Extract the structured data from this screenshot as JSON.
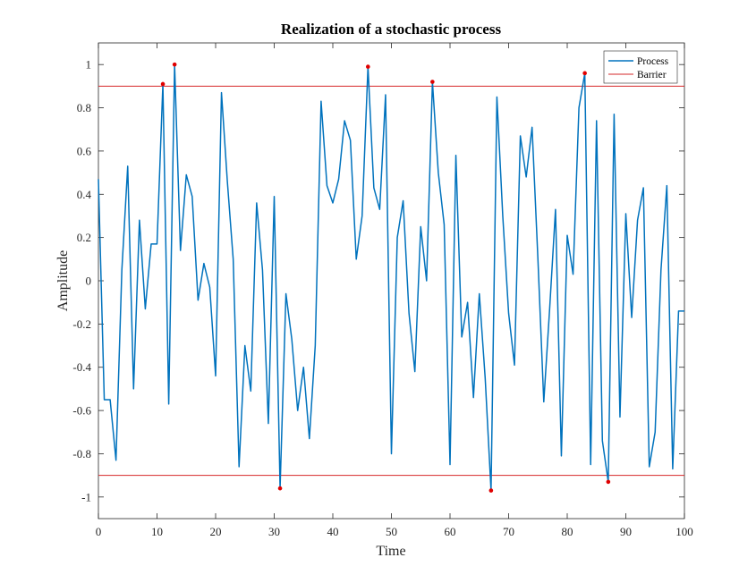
{
  "chart_data": {
    "type": "line",
    "title": "Realization of a stochastic process",
    "xlabel": "Time",
    "ylabel": "Amplitude",
    "xlim": [
      0,
      100
    ],
    "ylim": [
      -1.1,
      1.1
    ],
    "xticks": [
      "0",
      "10",
      "20",
      "30",
      "40",
      "50",
      "60",
      "70",
      "80",
      "90",
      "100"
    ],
    "yticks": [
      "-1",
      "-0.8",
      "-0.6",
      "-0.4",
      "-0.2",
      "0",
      "0.2",
      "0.4",
      "0.6",
      "0.8",
      "1"
    ],
    "grid": false,
    "legend": {
      "placement": "top-right",
      "entries": [
        "Process",
        "Barrier"
      ]
    },
    "colors": {
      "process": "#0072bd",
      "barrier": "#d62728",
      "markers": "#e00000",
      "axes": "#262626"
    },
    "series": [
      {
        "name": "Process",
        "x": [
          0,
          1,
          2,
          3,
          4,
          5,
          6,
          7,
          8,
          9,
          10,
          11,
          12,
          13,
          14,
          15,
          16,
          17,
          18,
          19,
          20,
          21,
          22,
          23,
          24,
          25,
          26,
          27,
          28,
          29,
          30,
          31,
          32,
          33,
          34,
          35,
          36,
          37,
          38,
          39,
          40,
          41,
          42,
          43,
          44,
          45,
          46,
          47,
          48,
          49,
          50,
          51,
          52,
          53,
          54,
          55,
          56,
          57,
          58,
          59,
          60,
          61,
          62,
          63,
          64,
          65,
          66,
          67,
          68,
          69,
          70,
          71,
          72,
          73,
          74,
          75,
          76,
          77,
          78,
          79,
          80,
          81,
          82,
          83,
          84,
          85,
          86,
          87,
          88,
          89,
          90,
          91,
          92,
          93,
          94,
          95,
          96,
          97,
          98,
          99,
          100
        ],
        "y": [
          0.47,
          -0.55,
          -0.55,
          -0.83,
          0.05,
          0.53,
          -0.5,
          0.28,
          -0.13,
          0.17,
          0.17,
          0.91,
          -0.57,
          1.0,
          0.14,
          0.49,
          0.39,
          -0.09,
          0.08,
          -0.03,
          -0.44,
          0.87,
          0.46,
          0.1,
          -0.86,
          -0.3,
          -0.51,
          0.36,
          0.05,
          -0.66,
          0.39,
          -0.96,
          -0.06,
          -0.27,
          -0.6,
          -0.4,
          -0.73,
          -0.3,
          0.83,
          0.44,
          0.36,
          0.47,
          0.74,
          0.65,
          0.1,
          0.3,
          0.99,
          0.43,
          0.33,
          0.86,
          -0.8,
          0.2,
          0.37,
          -0.15,
          -0.42,
          0.25,
          0.0,
          0.92,
          0.5,
          0.26,
          -0.85,
          0.58,
          -0.26,
          -0.1,
          -0.54,
          -0.06,
          -0.45,
          -0.97,
          0.85,
          0.3,
          -0.15,
          -0.39,
          0.67,
          0.48,
          0.71,
          0.1,
          -0.56,
          -0.13,
          0.33,
          -0.81,
          0.21,
          0.03,
          0.8,
          0.96,
          -0.85,
          0.74,
          -0.74,
          -0.93,
          0.77,
          -0.63,
          0.31,
          -0.17,
          0.28,
          0.43,
          -0.86,
          -0.7,
          0.05,
          0.44,
          -0.87,
          -0.14,
          -0.14
        ]
      },
      {
        "name": "Barrier",
        "x": [
          0,
          100
        ],
        "y": [
          0.9,
          0.9
        ]
      },
      {
        "name": "",
        "x": [
          0,
          100
        ],
        "y": [
          -0.9,
          -0.9
        ]
      }
    ],
    "crossings": {
      "x": [
        11,
        13,
        31,
        46,
        57,
        67,
        83,
        87
      ],
      "y": [
        0.91,
        1.0,
        -0.96,
        0.99,
        0.92,
        -0.97,
        0.96,
        -0.93
      ]
    }
  }
}
